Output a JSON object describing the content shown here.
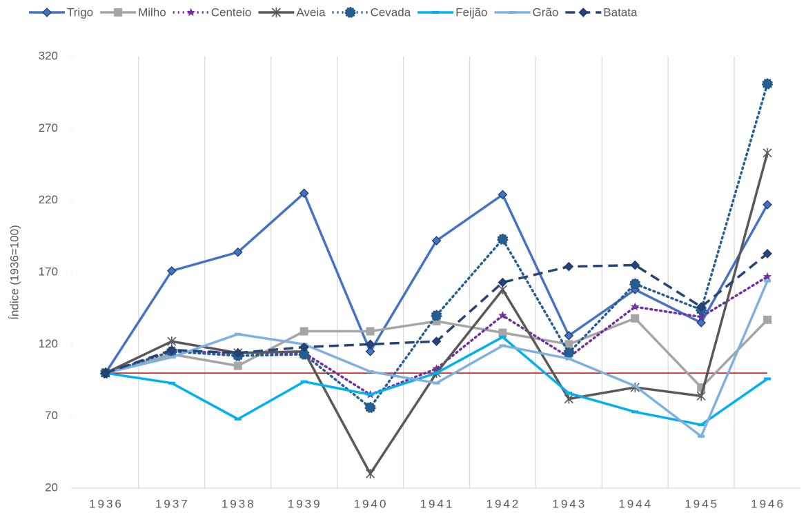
{
  "chart_data": {
    "type": "line",
    "y_label": "Índice (1936=100)",
    "categories": [
      "1936",
      "1937",
      "1938",
      "1939",
      "1940",
      "1941",
      "1942",
      "1943",
      "1944",
      "1945",
      "1946"
    ],
    "ylim": [
      20,
      320
    ],
    "yticks": [
      20,
      70,
      120,
      170,
      220,
      270,
      320
    ],
    "reference_line": {
      "value": 100,
      "color": "#e00000"
    },
    "legend": "top",
    "series": [
      {
        "name": "Trigo",
        "color": "#4472c4",
        "dash": "solid",
        "marker": "diamond",
        "values": [
          100,
          171,
          184,
          225,
          115,
          192,
          224,
          126,
          158,
          135,
          217
        ]
      },
      {
        "name": "Milho",
        "color": "#a5a5a5",
        "dash": "solid",
        "marker": "square",
        "values": [
          100,
          113,
          105,
          129,
          129,
          136,
          128,
          120,
          138,
          90,
          137
        ]
      },
      {
        "name": "Centeio",
        "color": "#7030a0",
        "dash": "dot",
        "marker": "star",
        "values": [
          100,
          115,
          114,
          114,
          85,
          103,
          140,
          111,
          146,
          139,
          167
        ]
      },
      {
        "name": "Aveia",
        "color": "#595959",
        "dash": "solid",
        "marker": "asterisk",
        "values": [
          100,
          122,
          114,
          115,
          30,
          100,
          158,
          82,
          90,
          84,
          253
        ]
      },
      {
        "name": "Cevada",
        "color": "#255e91",
        "dash": "dot",
        "marker": "circle",
        "values": [
          100,
          115,
          112,
          113,
          76,
          140,
          193,
          114,
          162,
          144,
          301
        ]
      },
      {
        "name": "Feijão",
        "color": "#00b0f0",
        "dash": "solid",
        "marker": "dash",
        "values": [
          100,
          93,
          68,
          94,
          85,
          100,
          125,
          86,
          73,
          64,
          96
        ]
      },
      {
        "name": "Grão",
        "color": "#7fb0e0",
        "dash": "solid",
        "marker": "dash",
        "values": [
          100,
          111,
          127,
          120,
          101,
          93,
          119,
          110,
          91,
          56,
          164
        ]
      },
      {
        "name": "Batata",
        "color": "#264478",
        "dash": "dash",
        "marker": "diamond",
        "values": [
          100,
          116,
          114,
          118,
          120,
          122,
          163,
          174,
          175,
          146,
          183
        ]
      }
    ]
  }
}
